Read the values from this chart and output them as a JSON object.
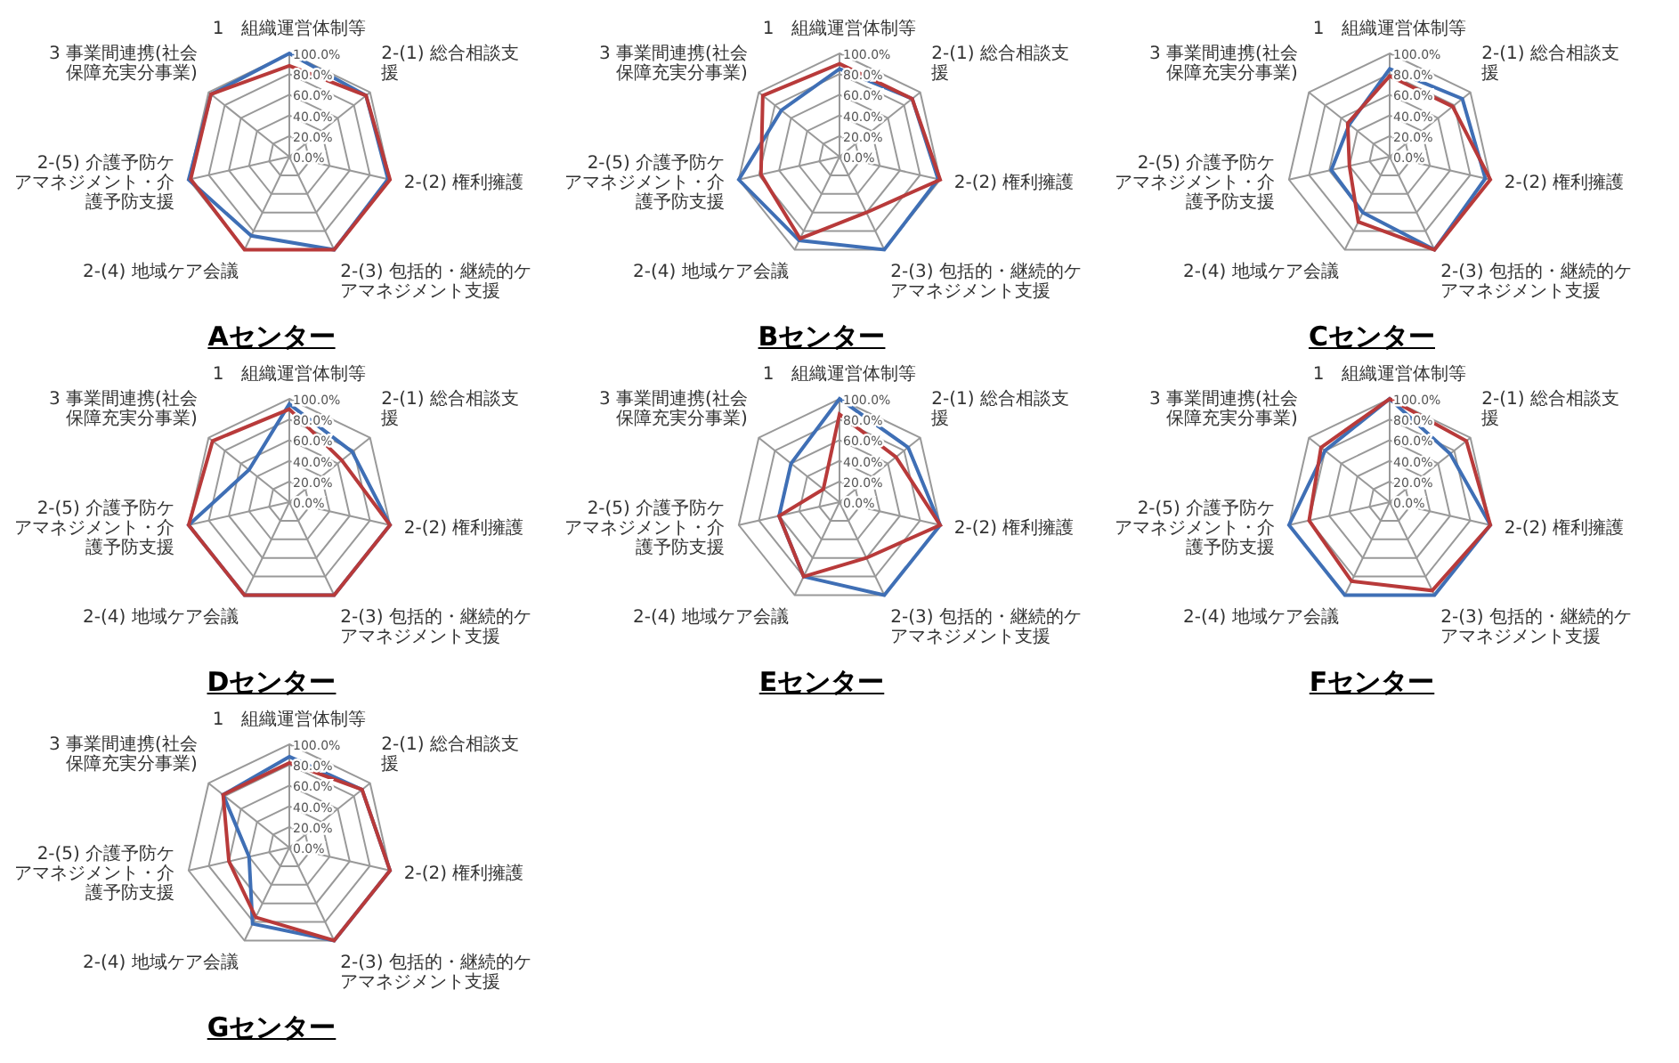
{
  "chart_data": [
    {
      "type": "radar",
      "title": "Aセンター",
      "categories": [
        "1　組織運営体制等",
        "2-(1) 総合相談支援",
        "2-(2) 権利擁護",
        "2-(3) 包括的・継続的ケアマネジメント支援",
        "2-(4) 地域ケア会議",
        "2-(5) 介護予防ケアマネジメント・介護予防支援",
        "3 事業間連携(社会保障充実分事業)"
      ],
      "ylim": [
        0,
        100
      ],
      "yticks": [
        {
          "value": 0,
          "label": "0.0%"
        },
        {
          "value": 20,
          "label": "20.0%"
        },
        {
          "value": 40,
          "label": "40.0%"
        },
        {
          "value": 60,
          "label": "60.0%"
        },
        {
          "value": 80,
          "label": "80.0%"
        },
        {
          "value": 100,
          "label": "100.0%"
        }
      ],
      "grid": true,
      "series": [
        {
          "color": "#3f6fb5",
          "values": [
            100,
            95,
            98,
            100,
            85,
            100,
            97
          ]
        },
        {
          "color": "#b83a3a",
          "values": [
            88,
            95,
            100,
            100,
            100,
            98,
            97
          ]
        }
      ]
    },
    {
      "type": "radar",
      "title": "Bセンター",
      "categories": [
        "1　組織運営体制等",
        "2-(1) 総合相談支援",
        "2-(2) 権利擁護",
        "2-(3) 包括的・継続的ケアマネジメント支援",
        "2-(4) 地域ケア会議",
        "2-(5) 介護予防ケアマネジメント・介護予防支援",
        "3 事業間連携(社会保障充実分事業)"
      ],
      "ylim": [
        0,
        100
      ],
      "yticks": [
        {
          "value": 0,
          "label": "0.0%"
        },
        {
          "value": 20,
          "label": "20.0%"
        },
        {
          "value": 40,
          "label": "40.0%"
        },
        {
          "value": 60,
          "label": "60.0%"
        },
        {
          "value": 80,
          "label": "80.0%"
        },
        {
          "value": 100,
          "label": "100.0%"
        }
      ],
      "grid": true,
      "series": [
        {
          "color": "#3f6fb5",
          "values": [
            85,
            90,
            98,
            100,
            90,
            100,
            72
          ]
        },
        {
          "color": "#b83a3a",
          "values": [
            90,
            90,
            100,
            60,
            88,
            78,
            95
          ]
        }
      ]
    },
    {
      "type": "radar",
      "title": "Cセンター",
      "categories": [
        "1　組織運営体制等",
        "2-(1) 総合相談支援",
        "2-(2) 権利擁護",
        "2-(3) 包括的・継続的ケアマネジメント支援",
        "2-(4) 地域ケア会議",
        "2-(5) 介護予防ケアマネジメント・介護予防支援",
        "3 事業間連携(社会保障充実分事業)"
      ],
      "ylim": [
        0,
        100
      ],
      "yticks": [
        {
          "value": 0,
          "label": "0.0%"
        },
        {
          "value": 20,
          "label": "20.0%"
        },
        {
          "value": 40,
          "label": "40.0%"
        },
        {
          "value": 60,
          "label": "60.0%"
        },
        {
          "value": 80,
          "label": "80.0%"
        },
        {
          "value": 100,
          "label": "100.0%"
        }
      ],
      "grid": true,
      "series": [
        {
          "color": "#3f6fb5",
          "values": [
            85,
            90,
            95,
            100,
            60,
            58,
            50
          ]
        },
        {
          "color": "#b83a3a",
          "values": [
            78,
            78,
            100,
            100,
            70,
            40,
            52
          ]
        }
      ]
    },
    {
      "type": "radar",
      "title": "Dセンター",
      "categories": [
        "1　組織運営体制等",
        "2-(1) 総合相談支援",
        "2-(2) 権利擁護",
        "2-(3) 包括的・継続的ケアマネジメント支援",
        "2-(4) 地域ケア会議",
        "2-(5) 介護予防ケアマネジメント・介護予防支援",
        "3 事業間連携(社会保障充実分事業)"
      ],
      "ylim": [
        0,
        100
      ],
      "yticks": [
        {
          "value": 0,
          "label": "0.0%"
        },
        {
          "value": 20,
          "label": "20.0%"
        },
        {
          "value": 40,
          "label": "40.0%"
        },
        {
          "value": 60,
          "label": "60.0%"
        },
        {
          "value": 80,
          "label": "80.0%"
        },
        {
          "value": 100,
          "label": "100.0%"
        }
      ],
      "grid": true,
      "series": [
        {
          "color": "#3f6fb5",
          "values": [
            95,
            78,
            100,
            100,
            100,
            100,
            50
          ]
        },
        {
          "color": "#b83a3a",
          "values": [
            90,
            65,
            100,
            100,
            100,
            100,
            95
          ]
        }
      ]
    },
    {
      "type": "radar",
      "title": "Eセンター",
      "categories": [
        "1　組織運営体制等",
        "2-(1) 総合相談支援",
        "2-(2) 権利擁護",
        "2-(3) 包括的・継続的ケアマネジメント支援",
        "2-(4) 地域ケア会議",
        "2-(5) 介護予防ケアマネジメント・介護予防支援",
        "3 事業間連携(社会保障充実分事業)"
      ],
      "ylim": [
        0,
        100
      ],
      "yticks": [
        {
          "value": 0,
          "label": "0.0%"
        },
        {
          "value": 20,
          "label": "20.0%"
        },
        {
          "value": 40,
          "label": "40.0%"
        },
        {
          "value": 60,
          "label": "60.0%"
        },
        {
          "value": 80,
          "label": "80.0%"
        },
        {
          "value": 100,
          "label": "100.0%"
        }
      ],
      "grid": true,
      "series": [
        {
          "color": "#3f6fb5",
          "values": [
            100,
            85,
            100,
            100,
            80,
            60,
            60
          ]
        },
        {
          "color": "#b83a3a",
          "values": [
            85,
            70,
            100,
            60,
            80,
            60,
            20
          ]
        }
      ]
    },
    {
      "type": "radar",
      "title": "Fセンター",
      "categories": [
        "1　組織運営体制等",
        "2-(1) 総合相談支援",
        "2-(2) 権利擁護",
        "2-(3) 包括的・継続的ケアマネジメント支援",
        "2-(4) 地域ケア会議",
        "2-(5) 介護予防ケアマネジメント・介護予防支援",
        "3 事業間連携(社会保障充実分事業)"
      ],
      "ylim": [
        0,
        100
      ],
      "yticks": [
        {
          "value": 0,
          "label": "0.0%"
        },
        {
          "value": 20,
          "label": "20.0%"
        },
        {
          "value": 40,
          "label": "40.0%"
        },
        {
          "value": 60,
          "label": "60.0%"
        },
        {
          "value": 80,
          "label": "80.0%"
        },
        {
          "value": 100,
          "label": "100.0%"
        }
      ],
      "grid": true,
      "series": [
        {
          "color": "#3f6fb5",
          "values": [
            100,
            75,
            100,
            100,
            100,
            100,
            80
          ]
        },
        {
          "color": "#b83a3a",
          "values": [
            100,
            95,
            100,
            95,
            85,
            80,
            85
          ]
        }
      ]
    },
    {
      "type": "radar",
      "title": "Gセンター",
      "categories": [
        "1　組織運営体制等",
        "2-(1) 総合相談支援",
        "2-(2) 権利擁護",
        "2-(3) 包括的・継続的ケアマネジメント支援",
        "2-(4) 地域ケア会議",
        "2-(5) 介護予防ケアマネジメント・介護予防支援",
        "3 事業間連携(社会保障充実分事業)"
      ],
      "ylim": [
        0,
        100
      ],
      "yticks": [
        {
          "value": 0,
          "label": "0.0%"
        },
        {
          "value": 20,
          "label": "20.0%"
        },
        {
          "value": 40,
          "label": "40.0%"
        },
        {
          "value": 60,
          "label": "60.0%"
        },
        {
          "value": 80,
          "label": "80.0%"
        },
        {
          "value": 100,
          "label": "100.0%"
        }
      ],
      "grid": true,
      "series": [
        {
          "color": "#3f6fb5",
          "values": [
            88,
            90,
            100,
            100,
            82,
            40,
            82
          ]
        },
        {
          "color": "#b83a3a",
          "values": [
            82,
            90,
            100,
            100,
            75,
            60,
            82
          ]
        }
      ]
    }
  ]
}
